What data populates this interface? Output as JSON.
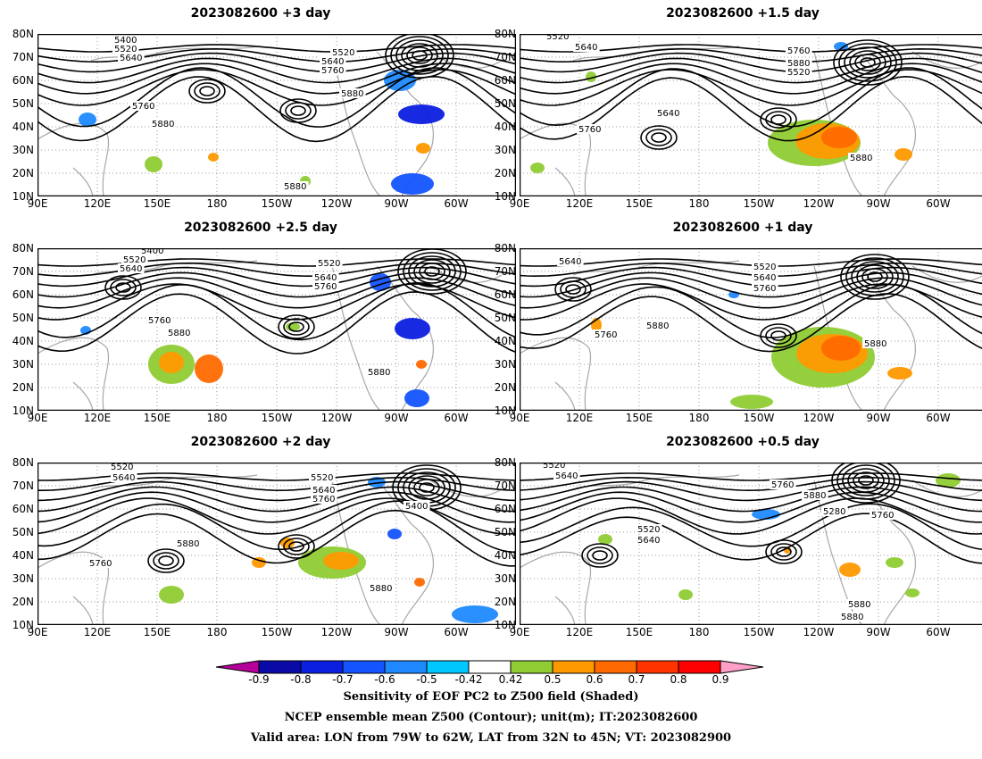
{
  "panels": [
    {
      "title": "2023082600 +3 day",
      "contour_labels": [
        "5400",
        "5520",
        "5640",
        "5760",
        "5880",
        "5880",
        "5520",
        "5640",
        "5760",
        "5880"
      ]
    },
    {
      "title": "2023082600 +1.5 day",
      "contour_labels": [
        "5520",
        "5640",
        "5760",
        "5880",
        "5520",
        "5640",
        "5760",
        "5880"
      ]
    },
    {
      "title": "2023082600 +2.5 day",
      "contour_labels": [
        "5400",
        "5520",
        "5640",
        "5760",
        "5880",
        "5520",
        "5640",
        "5760",
        "5880"
      ]
    },
    {
      "title": "2023082600 +1 day",
      "contour_labels": [
        "5640",
        "5760",
        "5880",
        "5520",
        "5640",
        "5760",
        "5880"
      ]
    },
    {
      "title": "2023082600 +2 day",
      "contour_labels": [
        "5520",
        "5640",
        "5880",
        "5760",
        "5520",
        "5640",
        "5760",
        "5400",
        "5880"
      ]
    },
    {
      "title": "2023082600 +0.5 day",
      "contour_labels": [
        "5520",
        "5640",
        "5760",
        "5880",
        "5520",
        "5640",
        "5280",
        "5760",
        "5880",
        "5880"
      ]
    }
  ],
  "lat_ticks": [
    "80N",
    "70N",
    "60N",
    "50N",
    "40N",
    "30N",
    "20N",
    "10N"
  ],
  "lon_ticks": [
    "90E",
    "120E",
    "150E",
    "180",
    "150W",
    "120W",
    "90W",
    "60W"
  ],
  "colorbar": {
    "labels": [
      "-0.9",
      "-0.8",
      "-0.7",
      "-0.6",
      "-0.5",
      "-0.42",
      "0.42",
      "0.5",
      "0.6",
      "0.7",
      "0.8",
      "0.9"
    ],
    "colors": [
      "#b5009a",
      "#0a0aa6",
      "#0b1fe0",
      "#1454ff",
      "#1f89ff",
      "#00c8ff",
      "#ffffff",
      "#8fcc33",
      "#ff9900",
      "#ff6a00",
      "#ff3300",
      "#ff0000",
      "#ff9ec6"
    ]
  },
  "captions": [
    "Sensitivity of EOF PC2 to Z500 field (Shaded)",
    "NCEP ensemble mean Z500 (Contour); unit(m); IT:2023082600",
    "Valid area: LON from 79W to 62W, LAT from 32N to 45N; VT: 2023082900"
  ]
}
